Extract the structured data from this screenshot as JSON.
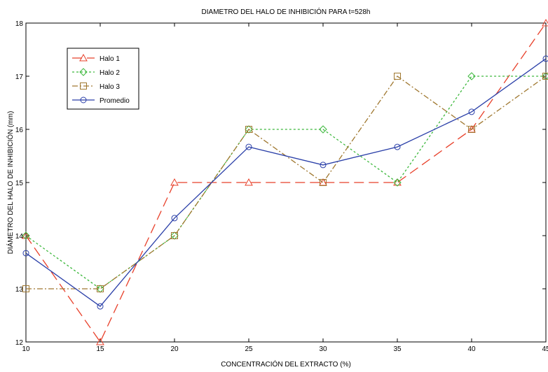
{
  "chart_data": {
    "type": "line",
    "title": "DIAMETRO DEL HALO DE INHIBICIÓN PARA t=528h",
    "xlabel": "CONCENTRACIÓN DEL EXTRACTO (%)",
    "ylabel": "DIÁMETRO DEL HALO DE INHIBICIÓN (mm)",
    "x": [
      10,
      15,
      20,
      25,
      30,
      35,
      40,
      45
    ],
    "xlim": [
      10,
      45
    ],
    "ylim": [
      12,
      18
    ],
    "xticks": [
      "10",
      "15",
      "20",
      "25",
      "30",
      "35",
      "40",
      "45"
    ],
    "yticks": [
      "12",
      "13",
      "14",
      "15",
      "16",
      "17",
      "18"
    ],
    "grid": false,
    "legend_position": "top-left",
    "series": [
      {
        "name": "Halo 1",
        "values": [
          14,
          12,
          15,
          15,
          15,
          15,
          16,
          18
        ],
        "color": "#e8402a",
        "dash": "long-dash",
        "marker": "triangle"
      },
      {
        "name": "Halo 2",
        "values": [
          14,
          13,
          14,
          16,
          16,
          15,
          17,
          17
        ],
        "color": "#3cb83c",
        "dash": "dotted",
        "marker": "diamond"
      },
      {
        "name": "Halo 3",
        "values": [
          13,
          13,
          14,
          16,
          15,
          17,
          16,
          17
        ],
        "color": "#a07830",
        "dash": "dash-dot",
        "marker": "square"
      },
      {
        "name": "Promedio",
        "values": [
          13.67,
          12.67,
          14.33,
          15.67,
          15.33,
          15.67,
          16.33,
          17.33
        ],
        "color": "#2a3fa8",
        "dash": "solid",
        "marker": "circle"
      }
    ]
  }
}
